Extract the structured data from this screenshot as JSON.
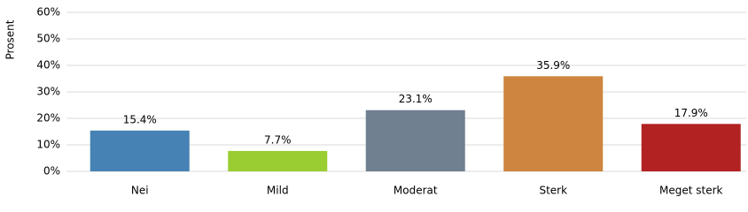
{
  "chart_data": {
    "type": "bar",
    "y_label": "Prosent",
    "categories": [
      "Nei",
      "Mild",
      "Moderat",
      "Sterk",
      "Meget sterk"
    ],
    "values": [
      15.4,
      7.7,
      23.1,
      35.9,
      17.9
    ],
    "value_labels": [
      "15.4%",
      "7.7%",
      "23.1%",
      "35.9%",
      "17.9%"
    ],
    "colors": [
      "#4682b4",
      "#9acd32",
      "#708090",
      "#cd853f",
      "#b22222"
    ],
    "ylim": [
      0,
      60
    ],
    "yticks": [
      {
        "value": 0,
        "label": "0%"
      },
      {
        "value": 10,
        "label": "10%"
      },
      {
        "value": 20,
        "label": "20%"
      },
      {
        "value": 30,
        "label": "30%"
      },
      {
        "value": 40,
        "label": "40%"
      },
      {
        "value": 50,
        "label": "50%"
      },
      {
        "value": 60,
        "label": "60%"
      }
    ],
    "grid": true
  }
}
